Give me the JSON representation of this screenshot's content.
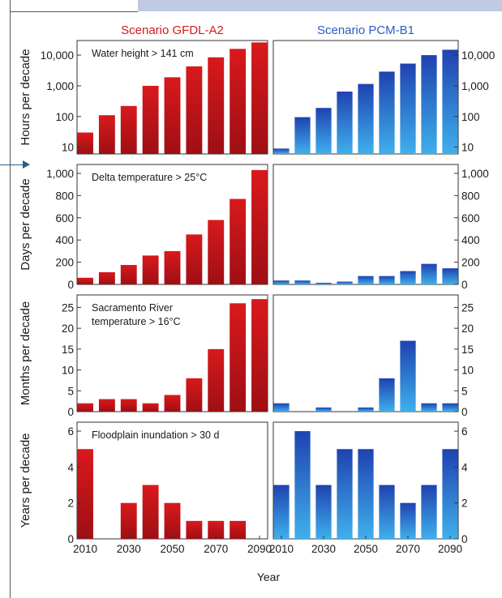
{
  "chart_data": {
    "type": "bar",
    "columns": [
      {
        "title": "Scenario GFDL-A2",
        "color": "#d11c1c"
      },
      {
        "title": "Scenario PCM-B1",
        "color": "#2a5bc4"
      }
    ],
    "x_ticks": [
      "2010",
      "2030",
      "2050",
      "2070",
      "2090"
    ],
    "categories": [
      2010,
      2020,
      2030,
      2040,
      2050,
      2060,
      2070,
      2080,
      2090
    ],
    "xlabel": "Year",
    "panels": [
      {
        "ylabel": "Hours per decade",
        "scale": "log",
        "ylim": [
          6,
          30000
        ],
        "ticks": [
          10,
          100,
          1000,
          10000
        ],
        "tick_labels": [
          "10",
          "100",
          "1,000",
          "10,000"
        ],
        "annotation": [
          "Water height > 141 cm"
        ],
        "series": [
          {
            "name": "Scenario GFDL-A2",
            "values": [
              30,
              110,
              220,
              1000,
              1900,
              4300,
              8500,
              16000,
              26000
            ]
          },
          {
            "name": "Scenario PCM-B1",
            "values": [
              9,
              95,
              190,
              650,
              1150,
              2900,
              5300,
              10000,
              15000
            ]
          }
        ]
      },
      {
        "ylabel": "Days per decade",
        "scale": "linear",
        "ylim": [
          0,
          1080
        ],
        "ticks": [
          0,
          200,
          400,
          600,
          800,
          1000
        ],
        "tick_labels": [
          "0",
          "200",
          "400",
          "600",
          "800",
          "1,000"
        ],
        "annotation": [
          "Delta temperature > 25°C"
        ],
        "series": [
          {
            "name": "Scenario GFDL-A2",
            "values": [
              60,
              110,
              175,
              260,
              300,
              450,
              580,
              770,
              1030
            ]
          },
          {
            "name": "Scenario PCM-B1",
            "values": [
              35,
              35,
              15,
              25,
              75,
              75,
              120,
              185,
              145
            ]
          }
        ]
      },
      {
        "ylabel": "Months per decade",
        "scale": "linear",
        "ylim": [
          0,
          28
        ],
        "ticks": [
          0,
          5,
          10,
          15,
          20,
          25
        ],
        "tick_labels": [
          "0",
          "5",
          "10",
          "15",
          "20",
          "25"
        ],
        "annotation": [
          "Sacramento River",
          "temperature > 16°C"
        ],
        "series": [
          {
            "name": "Scenario GFDL-A2",
            "values": [
              2,
              3,
              3,
              2,
              4,
              8,
              15,
              26,
              27
            ]
          },
          {
            "name": "Scenario PCM-B1",
            "values": [
              2,
              0,
              1,
              0,
              1,
              8,
              17,
              2,
              2
            ]
          }
        ]
      },
      {
        "ylabel": "Years per decade",
        "scale": "linear",
        "ylim": [
          0,
          6.5
        ],
        "ticks": [
          0,
          2,
          4,
          6
        ],
        "tick_labels": [
          "0",
          "2",
          "4",
          "6"
        ],
        "annotation": [
          "Floodplain inundation > 30 d"
        ],
        "series": [
          {
            "name": "Scenario GFDL-A2",
            "values": [
              5,
              0,
              2,
              3,
              2,
              1,
              1,
              1,
              0
            ]
          },
          {
            "name": "Scenario PCM-B1",
            "values": [
              3,
              6,
              3,
              5,
              5,
              3,
              2,
              3,
              5
            ]
          }
        ]
      }
    ]
  }
}
